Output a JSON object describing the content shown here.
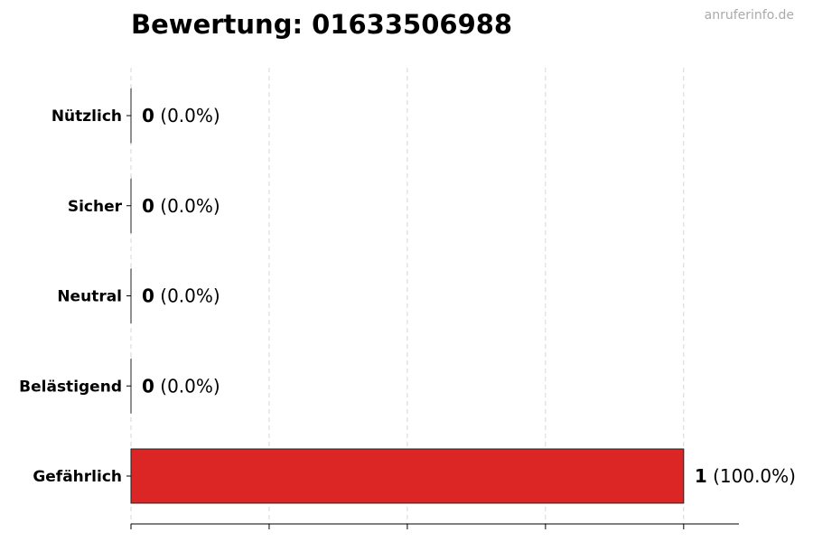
{
  "watermark": "anruferinfo.de",
  "chart_data": {
    "type": "bar",
    "orientation": "horizontal",
    "title": "Bewertung: 01633506988",
    "xlabel": "",
    "ylabel": "",
    "categories": [
      "Nützlich",
      "Sicher",
      "Neutral",
      "Belästigend",
      "Gefährlich"
    ],
    "values": [
      0,
      0,
      0,
      0,
      1
    ],
    "value_labels": [
      "0",
      "0",
      "0",
      "0",
      "1"
    ],
    "percent_labels": [
      "(0.0%)",
      "(0.0%)",
      "(0.0%)",
      "(0.0%)",
      "(100.0%)"
    ],
    "colors": [
      "#2e7d32",
      "#66bb6a",
      "#9e9e9e",
      "#fb8c00",
      "#dc2626"
    ],
    "xlim": [
      0,
      1.1
    ],
    "xticks": [
      0,
      0.25,
      0.5,
      0.75,
      1.0
    ],
    "grid": "x-dashed",
    "legend": "none"
  }
}
